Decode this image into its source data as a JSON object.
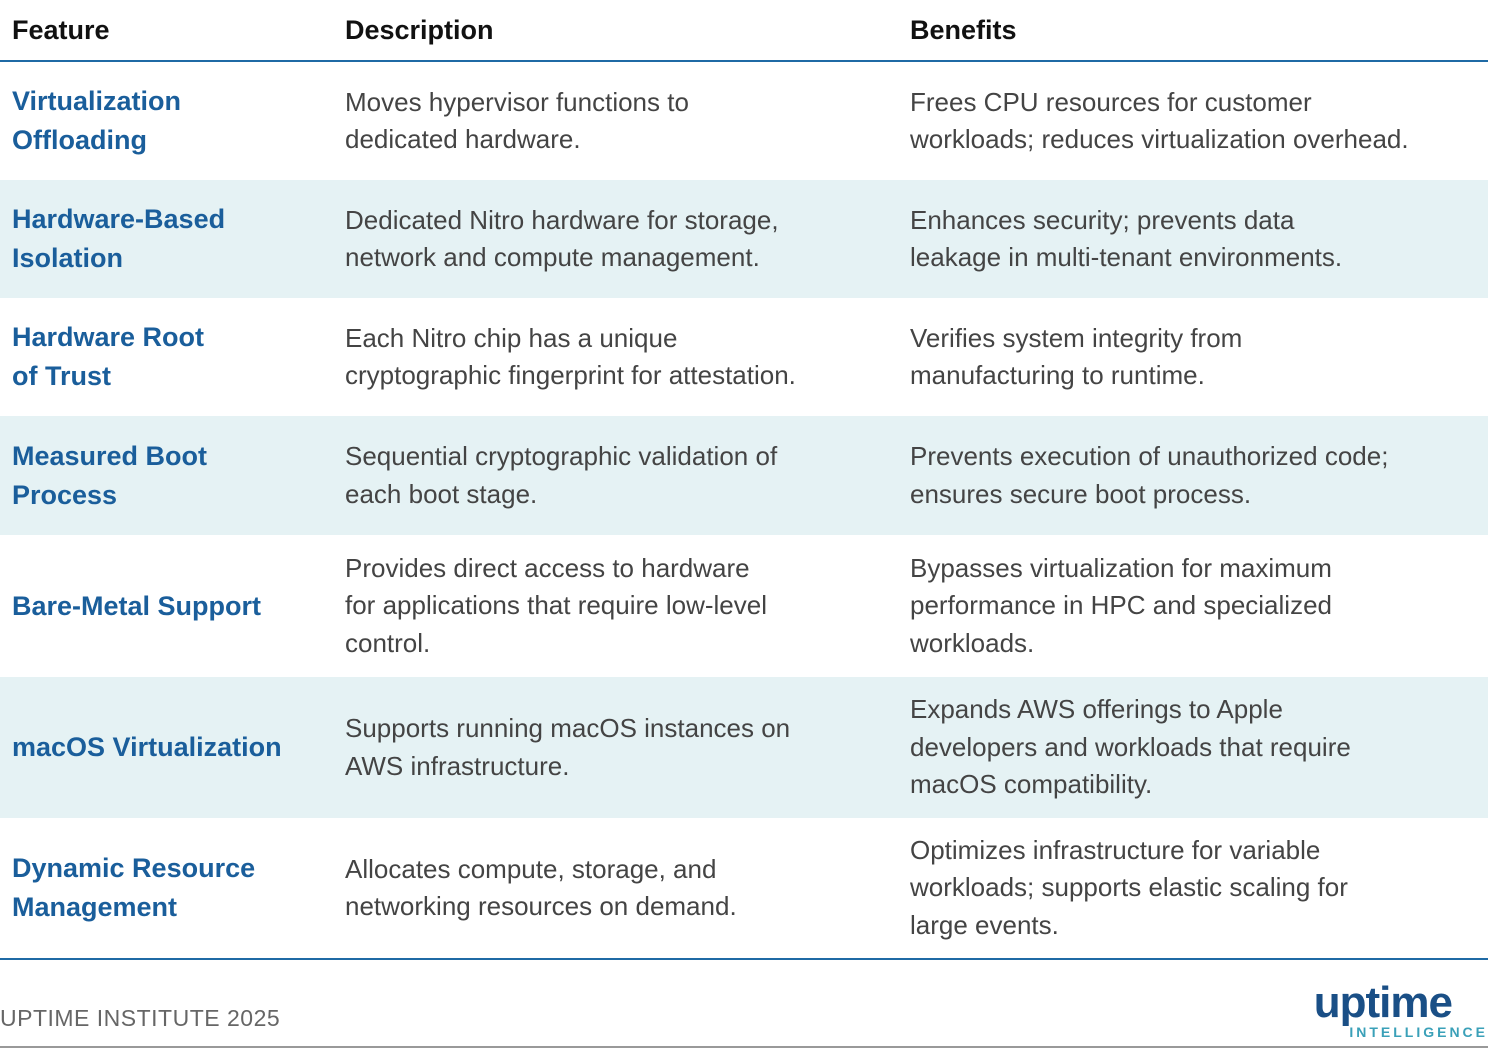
{
  "table": {
    "header": [
      "Feature",
      "Description",
      "Benefits"
    ],
    "rows": [
      [
        "Virtualization\nOffloading",
        "Moves hypervisor functions to\ndedicated hardware.",
        "Frees CPU resources for customer\nworkloads; reduces virtualization overhead."
      ],
      [
        "Hardware-Based\nIsolation",
        "Dedicated Nitro hardware for storage,\nnetwork and compute management.",
        "Enhances security; prevents data\nleakage in multi-tenant environments."
      ],
      [
        "Hardware Root\nof Trust",
        "Each Nitro chip has a unique\ncryptographic fingerprint for attestation.",
        "Verifies system integrity from\nmanufacturing to runtime."
      ],
      [
        "Measured Boot\nProcess",
        "Sequential cryptographic validation of\neach boot stage.",
        "Prevents execution of unauthorized code;\nensures secure boot process."
      ],
      [
        "Bare-Metal Support",
        "Provides direct access to hardware\nfor applications that require low-level\ncontrol.",
        "Bypasses virtualization for maximum\nperformance in HPC and specialized\nworkloads."
      ],
      [
        "macOS Virtualization",
        "Supports running macOS instances on\nAWS infrastructure.",
        "Expands AWS offerings to Apple\ndevelopers and workloads that require\nmacOS compatibility."
      ],
      [
        "Dynamic Resource\nManagement",
        "Allocates compute, storage, and\nnetworking resources on demand.",
        "Optimizes infrastructure for variable\nworkloads; supports elastic scaling for\nlarge events."
      ]
    ]
  },
  "footer": {
    "source": "UPTIME INSTITUTE 2025",
    "logo": {
      "name": "uptime",
      "tagline": "INTELLIGENCE"
    }
  }
}
